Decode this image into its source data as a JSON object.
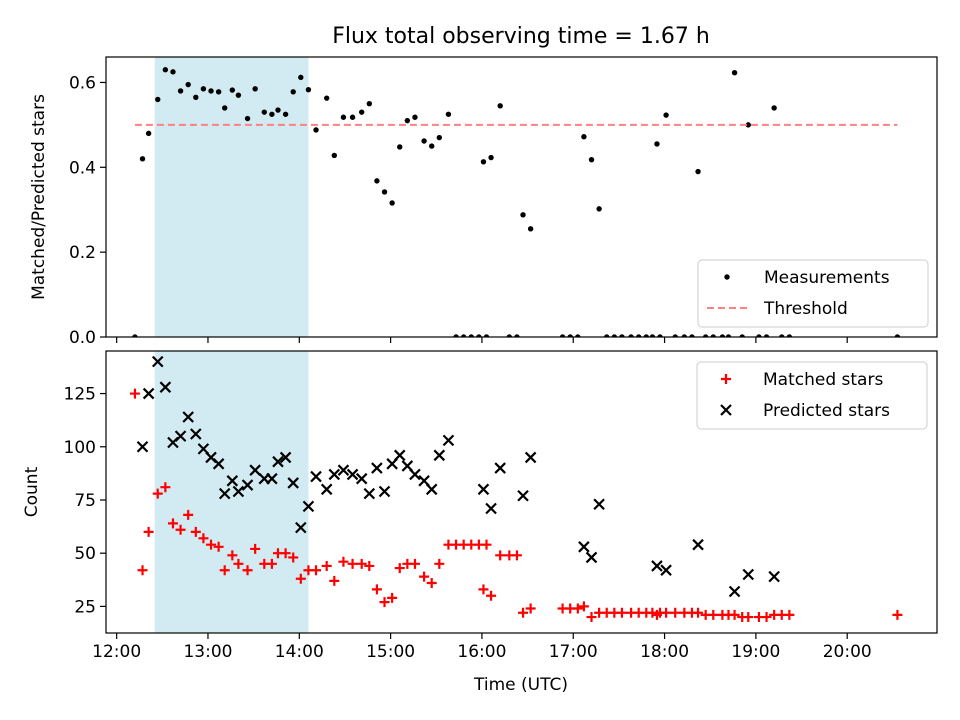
{
  "chart_data": [
    {
      "type": "scatter",
      "title": "Flux total observing time = 1.67 h",
      "xlabel": "",
      "ylabel": "Matched/Predicted stars",
      "xlim": [
        "11:53",
        "20:59"
      ],
      "ylim": [
        0,
        0.66
      ],
      "yticks": [
        0.0,
        0.2,
        0.4,
        0.6
      ],
      "ytick_labels": [
        "0.0",
        "0.2",
        "0.4",
        "0.6"
      ],
      "highlight_band": {
        "x_start": "12:25",
        "x_end": "14:06",
        "color": "#add8e6"
      },
      "series": [
        {
          "name": "Measurements",
          "marker": "dot",
          "color": "#000000",
          "points": [
            [
              "12:12",
              0.0
            ],
            [
              "12:17",
              0.42
            ],
            [
              "12:21",
              0.48
            ],
            [
              "12:27",
              0.56
            ],
            [
              "12:32",
              0.63
            ],
            [
              "12:37",
              0.625
            ],
            [
              "12:42",
              0.58
            ],
            [
              "12:47",
              0.595
            ],
            [
              "12:52",
              0.565
            ],
            [
              "12:57",
              0.585
            ],
            [
              "13:02",
              0.58
            ],
            [
              "13:07",
              0.578
            ],
            [
              "13:11",
              0.54
            ],
            [
              "13:16",
              0.582
            ],
            [
              "13:20",
              0.57
            ],
            [
              "13:26",
              0.515
            ],
            [
              "13:31",
              0.585
            ],
            [
              "13:37",
              0.53
            ],
            [
              "13:42",
              0.525
            ],
            [
              "13:46",
              0.535
            ],
            [
              "13:51",
              0.525
            ],
            [
              "13:56",
              0.578
            ],
            [
              "14:01",
              0.612
            ],
            [
              "14:06",
              0.583
            ],
            [
              "14:11",
              0.488
            ],
            [
              "14:18",
              0.563
            ],
            [
              "14:23",
              0.428
            ],
            [
              "14:29",
              0.518
            ],
            [
              "14:35",
              0.518
            ],
            [
              "14:41",
              0.53
            ],
            [
              "14:46",
              0.55
            ],
            [
              "14:51",
              0.368
            ],
            [
              "14:56",
              0.342
            ],
            [
              "15:01",
              0.316
            ],
            [
              "15:06",
              0.448
            ],
            [
              "15:11",
              0.51
            ],
            [
              "15:16",
              0.518
            ],
            [
              "15:22",
              0.462
            ],
            [
              "15:27",
              0.45
            ],
            [
              "15:32",
              0.47
            ],
            [
              "15:38",
              0.525
            ],
            [
              "15:43",
              0.0
            ],
            [
              "15:48",
              0.0
            ],
            [
              "15:53",
              0.0
            ],
            [
              "15:58",
              0.0
            ],
            [
              "16:03",
              0.0
            ],
            [
              "16:01",
              0.413
            ],
            [
              "16:06",
              0.423
            ],
            [
              "16:12",
              0.545
            ],
            [
              "16:18",
              0.0
            ],
            [
              "16:23",
              0.0
            ],
            [
              "16:27",
              0.288
            ],
            [
              "16:32",
              0.255
            ],
            [
              "16:53",
              0.0
            ],
            [
              "16:58",
              0.0
            ],
            [
              "17:03",
              0.0
            ],
            [
              "17:07",
              0.472
            ],
            [
              "17:12",
              0.418
            ],
            [
              "17:17",
              0.302
            ],
            [
              "17:22",
              0.0
            ],
            [
              "17:27",
              0.0
            ],
            [
              "17:32",
              0.0
            ],
            [
              "17:38",
              0.0
            ],
            [
              "17:43",
              0.0
            ],
            [
              "17:48",
              0.0
            ],
            [
              "17:52",
              0.0
            ],
            [
              "17:57",
              0.0
            ],
            [
              "17:55",
              0.455
            ],
            [
              "18:01",
              0.523
            ],
            [
              "18:07",
              0.0
            ],
            [
              "18:13",
              0.0
            ],
            [
              "18:18",
              0.0
            ],
            [
              "18:22",
              0.39
            ],
            [
              "18:27",
              0.0
            ],
            [
              "18:32",
              0.0
            ],
            [
              "18:38",
              0.0
            ],
            [
              "18:42",
              0.0
            ],
            [
              "18:46",
              0.623
            ],
            [
              "18:51",
              0.0
            ],
            [
              "18:55",
              0.5
            ],
            [
              "19:02",
              0.0
            ],
            [
              "19:07",
              0.0
            ],
            [
              "19:12",
              0.54
            ],
            [
              "19:17",
              0.0
            ],
            [
              "19:22",
              0.0
            ],
            [
              "20:33",
              0.0
            ]
          ]
        },
        {
          "name": "Threshold",
          "line_style": "dashed",
          "color": "#ff8080",
          "points": [
            [
              "12:12",
              0.5
            ],
            [
              "20:33",
              0.5
            ]
          ]
        }
      ],
      "legend": {
        "placement": "bottom-right",
        "entries": [
          "Measurements",
          "Threshold"
        ]
      }
    },
    {
      "type": "scatter",
      "title": "",
      "xlabel": "Time (UTC)",
      "ylabel": "Count",
      "xlim": [
        "11:53",
        "20:59"
      ],
      "ylim": [
        12.5,
        145
      ],
      "xticks": [
        "12:00",
        "13:00",
        "14:00",
        "15:00",
        "16:00",
        "17:00",
        "18:00",
        "19:00",
        "20:00"
      ],
      "yticks": [
        25,
        50,
        75,
        100,
        125
      ],
      "highlight_band": {
        "x_start": "12:25",
        "x_end": "14:06",
        "color": "#add8e6"
      },
      "series": [
        {
          "name": "Matched stars",
          "marker": "plus",
          "color": "#ff0000",
          "points": [
            [
              "12:12",
              125
            ],
            [
              "12:17",
              42
            ],
            [
              "12:21",
              60
            ],
            [
              "12:27",
              78
            ],
            [
              "12:32",
              81
            ],
            [
              "12:37",
              64
            ],
            [
              "12:42",
              61
            ],
            [
              "12:47",
              68
            ],
            [
              "12:52",
              60
            ],
            [
              "12:57",
              57
            ],
            [
              "13:02",
              54
            ],
            [
              "13:07",
              53
            ],
            [
              "13:11",
              42
            ],
            [
              "13:16",
              49
            ],
            [
              "13:20",
              45
            ],
            [
              "13:26",
              42
            ],
            [
              "13:31",
              52
            ],
            [
              "13:37",
              45
            ],
            [
              "13:42",
              45
            ],
            [
              "13:46",
              50
            ],
            [
              "13:51",
              50
            ],
            [
              "13:56",
              48
            ],
            [
              "14:01",
              38
            ],
            [
              "14:06",
              42
            ],
            [
              "14:11",
              42
            ],
            [
              "14:18",
              44
            ],
            [
              "14:23",
              37
            ],
            [
              "14:29",
              46
            ],
            [
              "14:35",
              45
            ],
            [
              "14:41",
              45
            ],
            [
              "14:46",
              44
            ],
            [
              "14:51",
              33
            ],
            [
              "14:56",
              27
            ],
            [
              "15:01",
              29
            ],
            [
              "15:06",
              43
            ],
            [
              "15:11",
              45
            ],
            [
              "15:16",
              45
            ],
            [
              "15:22",
              39
            ],
            [
              "15:27",
              36
            ],
            [
              "15:32",
              45
            ],
            [
              "15:38",
              54
            ],
            [
              "15:43",
              54
            ],
            [
              "15:48",
              54
            ],
            [
              "15:53",
              54
            ],
            [
              "15:58",
              54
            ],
            [
              "16:03",
              54
            ],
            [
              "16:01",
              33
            ],
            [
              "16:06",
              30
            ],
            [
              "16:12",
              49
            ],
            [
              "16:18",
              49
            ],
            [
              "16:23",
              49
            ],
            [
              "16:27",
              22
            ],
            [
              "16:32",
              24
            ],
            [
              "16:53",
              24
            ],
            [
              "16:58",
              24
            ],
            [
              "17:03",
              24
            ],
            [
              "17:07",
              25
            ],
            [
              "17:12",
              20
            ],
            [
              "17:17",
              22
            ],
            [
              "17:22",
              22
            ],
            [
              "17:27",
              22
            ],
            [
              "17:32",
              22
            ],
            [
              "17:38",
              22
            ],
            [
              "17:43",
              22
            ],
            [
              "17:48",
              22
            ],
            [
              "17:52",
              22
            ],
            [
              "17:57",
              22
            ],
            [
              "17:55",
              21
            ],
            [
              "18:01",
              22
            ],
            [
              "18:07",
              22
            ],
            [
              "18:13",
              22
            ],
            [
              "18:18",
              22
            ],
            [
              "18:22",
              22
            ],
            [
              "18:27",
              21
            ],
            [
              "18:32",
              21
            ],
            [
              "18:38",
              21
            ],
            [
              "18:42",
              21
            ],
            [
              "18:46",
              21
            ],
            [
              "18:51",
              20
            ],
            [
              "18:55",
              20
            ],
            [
              "19:02",
              20
            ],
            [
              "19:07",
              20
            ],
            [
              "19:12",
              21
            ],
            [
              "19:17",
              21
            ],
            [
              "19:22",
              21
            ],
            [
              "20:33",
              21
            ]
          ]
        },
        {
          "name": "Predicted stars",
          "marker": "x",
          "color": "#000000",
          "points": [
            [
              "12:17",
              100
            ],
            [
              "12:21",
              125
            ],
            [
              "12:27",
              140
            ],
            [
              "12:32",
              128
            ],
            [
              "12:37",
              102
            ],
            [
              "12:42",
              105
            ],
            [
              "12:47",
              114
            ],
            [
              "12:52",
              106
            ],
            [
              "12:57",
              99
            ],
            [
              "13:02",
              95
            ],
            [
              "13:07",
              92
            ],
            [
              "13:11",
              78
            ],
            [
              "13:16",
              84
            ],
            [
              "13:20",
              79
            ],
            [
              "13:26",
              82
            ],
            [
              "13:31",
              89
            ],
            [
              "13:37",
              85
            ],
            [
              "13:42",
              85
            ],
            [
              "13:46",
              93
            ],
            [
              "13:51",
              95
            ],
            [
              "13:56",
              83
            ],
            [
              "14:01",
              62
            ],
            [
              "14:06",
              72
            ],
            [
              "14:11",
              86
            ],
            [
              "14:18",
              80
            ],
            [
              "14:23",
              87
            ],
            [
              "14:29",
              89
            ],
            [
              "14:35",
              87
            ],
            [
              "14:41",
              85
            ],
            [
              "14:46",
              78
            ],
            [
              "14:51",
              90
            ],
            [
              "14:56",
              79
            ],
            [
              "15:01",
              92
            ],
            [
              "15:06",
              96
            ],
            [
              "15:11",
              91
            ],
            [
              "15:16",
              87
            ],
            [
              "15:22",
              84
            ],
            [
              "15:27",
              80
            ],
            [
              "15:32",
              96
            ],
            [
              "15:38",
              103
            ],
            [
              "16:01",
              80
            ],
            [
              "16:06",
              71
            ],
            [
              "16:12",
              90
            ],
            [
              "16:27",
              77
            ],
            [
              "16:32",
              95
            ],
            [
              "17:07",
              53
            ],
            [
              "17:12",
              48
            ],
            [
              "17:17",
              73
            ],
            [
              "17:55",
              44
            ],
            [
              "18:01",
              42
            ],
            [
              "18:22",
              54
            ],
            [
              "18:46",
              32
            ],
            [
              "18:55",
              40
            ],
            [
              "19:12",
              39
            ]
          ]
        }
      ],
      "legend": {
        "placement": "top-right",
        "entries": [
          "Matched stars",
          "Predicted stars"
        ]
      }
    }
  ]
}
